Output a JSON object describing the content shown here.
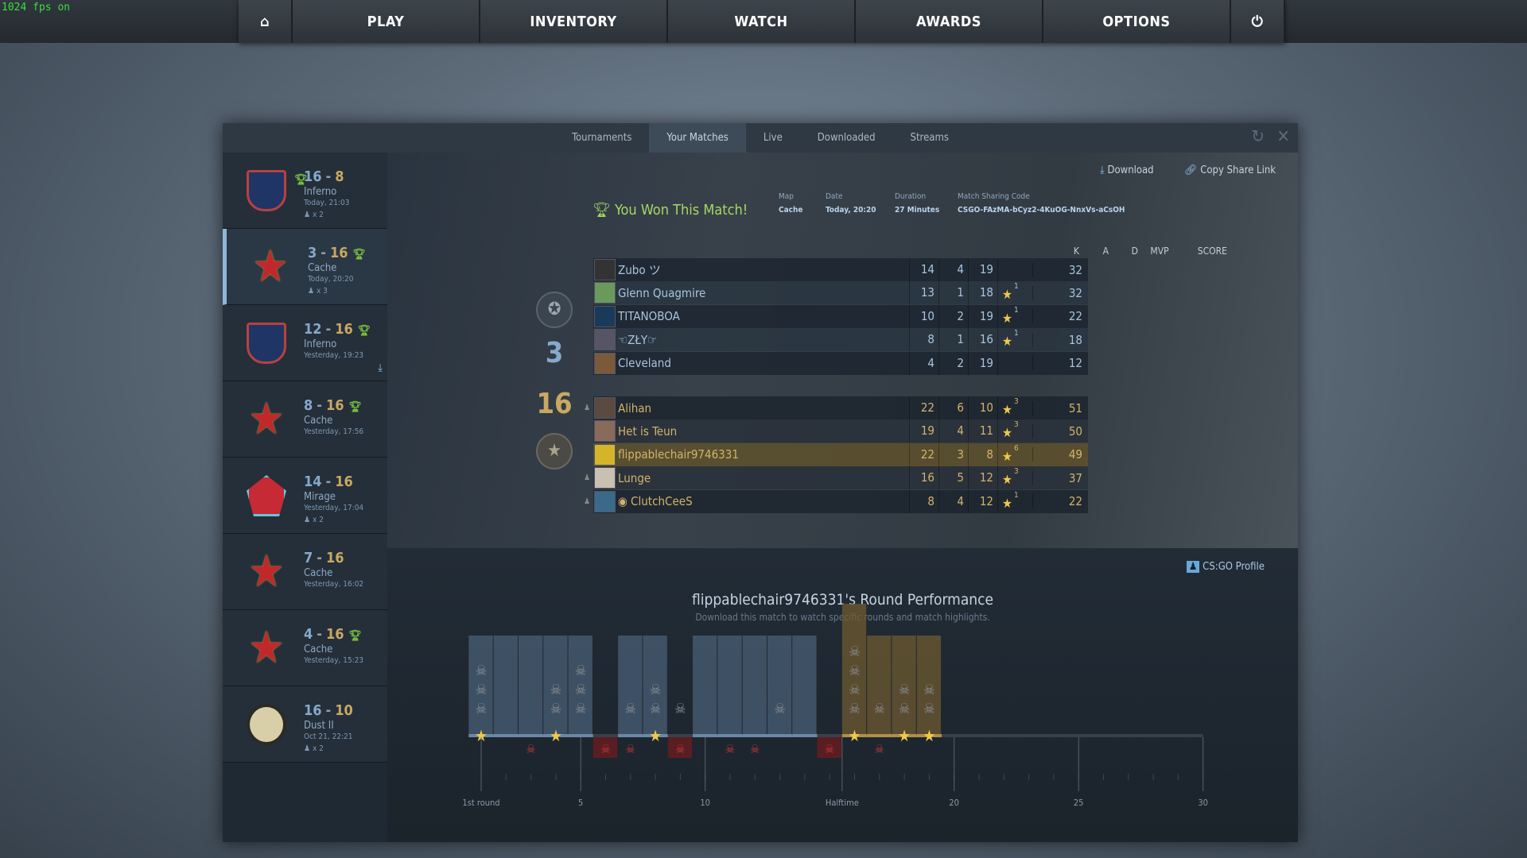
{
  "fps": "1024 fps on",
  "nav": {
    "home_icon": "home-icon",
    "items": [
      "PLAY",
      "INVENTORY",
      "WATCH",
      "AWARDS",
      "OPTIONS"
    ],
    "power_icon": "power-icon"
  },
  "tabs": [
    {
      "label": "Tournaments"
    },
    {
      "label": "Your Matches",
      "active": true
    },
    {
      "label": "Live"
    },
    {
      "label": "Downloaded"
    },
    {
      "label": "Streams"
    }
  ],
  "matches": [
    {
      "map": "Inferno",
      "a": "16",
      "b": "8",
      "win": "a",
      "date": "Today, 21:03",
      "party": "x 2"
    },
    {
      "map": "Cache",
      "a": "3",
      "b": "16",
      "win": "b",
      "date": "Today, 20:20",
      "party": "x 3",
      "selected": true
    },
    {
      "map": "Inferno",
      "a": "12",
      "b": "16",
      "win": "b",
      "date": "Yesterday, 19:23",
      "downloaded": true
    },
    {
      "map": "Cache",
      "a": "8",
      "b": "16",
      "win": "b",
      "date": "Yesterday, 17:56"
    },
    {
      "map": "Mirage",
      "a": "14",
      "b": "16",
      "date": "Yesterday, 17:04",
      "party": "x 2"
    },
    {
      "map": "Cache",
      "a": "7",
      "b": "16",
      "date": "Yesterday, 16:02"
    },
    {
      "map": "Cache",
      "a": "4",
      "b": "16",
      "win": "b",
      "date": "Yesterday, 15:23"
    },
    {
      "map": "Dust II",
      "a": "16",
      "b": "10",
      "date": "Oct 21, 22:21",
      "party": "x 2"
    }
  ],
  "detail": {
    "result": "You Won This Match!",
    "download": "Download",
    "copy_link": "Copy Share Link",
    "meta": [
      {
        "label": "Map",
        "value": "Cache"
      },
      {
        "label": "Date",
        "value": "Today, 20:20"
      },
      {
        "label": "Duration",
        "value": "27 Minutes"
      },
      {
        "label": "Match Sharing Code",
        "value": "CSGO-FAzMA-bCyz2-4KuOG-NnxVs-aCsOH"
      }
    ],
    "score_ct": "3",
    "score_t": "16",
    "headers": {
      "k": "K",
      "a": "A",
      "d": "D",
      "mvp": "MVP",
      "score": "SCORE"
    },
    "team_ct": [
      {
        "name": "Zubo ツ",
        "k": "14",
        "a": "4",
        "d": "19",
        "mvp": "",
        "score": "32"
      },
      {
        "name": "Glenn Quagmire",
        "k": "13",
        "a": "1",
        "d": "18",
        "mvp": "1",
        "score": "32"
      },
      {
        "name": "TITANOBOA",
        "k": "10",
        "a": "2",
        "d": "19",
        "mvp": "1",
        "score": "22"
      },
      {
        "name": "☜ZŁY☞",
        "k": "8",
        "a": "1",
        "d": "16",
        "mvp": "1",
        "score": "18"
      },
      {
        "name": "Cleveland",
        "k": "4",
        "a": "2",
        "d": "19",
        "mvp": "",
        "score": "12"
      }
    ],
    "team_t": [
      {
        "name": "Alihan",
        "k": "22",
        "a": "6",
        "d": "10",
        "mvp": "3",
        "score": "51",
        "party": true
      },
      {
        "name": "Het is Teun",
        "k": "19",
        "a": "4",
        "d": "11",
        "mvp": "3",
        "score": "50"
      },
      {
        "name": "flippablechair9746331",
        "k": "22",
        "a": "3",
        "d": "8",
        "mvp": "6",
        "score": "49",
        "me": true
      },
      {
        "name": "Lunge",
        "k": "16",
        "a": "5",
        "d": "12",
        "mvp": "3",
        "score": "37",
        "party": true
      },
      {
        "name": "◉ ClutchCeeS",
        "k": "8",
        "a": "4",
        "d": "12",
        "mvp": "1",
        "score": "22",
        "party": true
      }
    ]
  },
  "profile_link": "CS:GO Profile",
  "chart_data": {
    "type": "bar",
    "title": "flippablechair9746331's Round Performance",
    "subtitle": "Download this match to watch specific rounds and match highlights.",
    "tick_labels": [
      {
        "round": 1,
        "label": "1st round"
      },
      {
        "round": 5,
        "label": "5"
      },
      {
        "round": 10,
        "label": "10"
      },
      {
        "round": 15.5,
        "label": "Halftime"
      },
      {
        "round": 20,
        "label": "20"
      },
      {
        "round": 25,
        "label": "25"
      },
      {
        "round": 30,
        "label": "30"
      }
    ],
    "xlim": [
      1,
      30
    ],
    "rounds": [
      {
        "r": 1,
        "kills": 3,
        "mvp": true,
        "won": true,
        "died": false
      },
      {
        "r": 2,
        "kills": 0,
        "mvp": false,
        "won": true,
        "died": false
      },
      {
        "r": 3,
        "kills": 0,
        "mvp": false,
        "won": true,
        "died": true
      },
      {
        "r": 4,
        "kills": 2,
        "mvp": true,
        "won": true,
        "died": false
      },
      {
        "r": 5,
        "kills": 3,
        "mvp": false,
        "won": true,
        "died": false
      },
      {
        "r": 6,
        "kills": 0,
        "mvp": false,
        "won": false,
        "died": true
      },
      {
        "r": 7,
        "kills": 1,
        "mvp": false,
        "won": true,
        "died": true
      },
      {
        "r": 8,
        "kills": 2,
        "mvp": true,
        "won": true,
        "died": false
      },
      {
        "r": 9,
        "kills": 1,
        "mvp": false,
        "won": false,
        "died": true
      },
      {
        "r": 10,
        "kills": 0,
        "mvp": false,
        "won": true,
        "died": false
      },
      {
        "r": 11,
        "kills": 0,
        "mvp": false,
        "won": true,
        "died": true
      },
      {
        "r": 12,
        "kills": 0,
        "mvp": false,
        "won": true,
        "died": true
      },
      {
        "r": 13,
        "kills": 1,
        "mvp": false,
        "won": true,
        "died": false
      },
      {
        "r": 14,
        "kills": 0,
        "mvp": false,
        "won": true,
        "died": false
      },
      {
        "r": 15,
        "kills": 0,
        "mvp": false,
        "won": false,
        "died": true
      },
      {
        "r": 16,
        "kills": 4,
        "mvp": true,
        "won": true,
        "died": false
      },
      {
        "r": 17,
        "kills": 1,
        "mvp": false,
        "won": true,
        "died": true
      },
      {
        "r": 18,
        "kills": 2,
        "mvp": true,
        "won": true,
        "died": false
      },
      {
        "r": 19,
        "kills": 2,
        "mvp": true,
        "won": true,
        "died": false
      }
    ],
    "colors": {
      "ct_win": "#4a5f75",
      "t_win": "#6e5a30",
      "loss": "#1d252d",
      "death": "#c0393c",
      "mvp": "#f0c84a"
    }
  }
}
